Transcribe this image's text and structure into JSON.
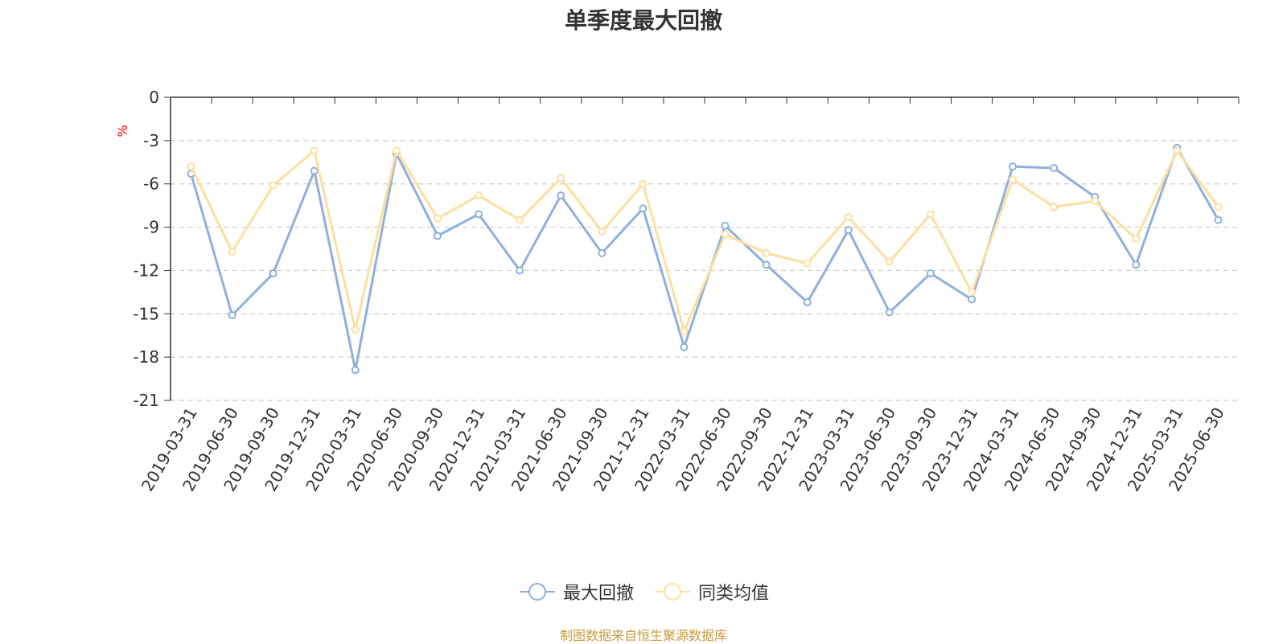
{
  "chart_data": {
    "type": "line",
    "title": "单季度最大回撤",
    "ylabel": "%",
    "xlabel": "",
    "ylim": [
      -21,
      0
    ],
    "yticks": [
      0,
      -3,
      -6,
      -9,
      -12,
      -15,
      -18,
      -21
    ],
    "categories": [
      "2019-03-31",
      "2019-06-30",
      "2019-09-30",
      "2019-12-31",
      "2020-03-31",
      "2020-06-30",
      "2020-09-30",
      "2020-12-31",
      "2021-03-31",
      "2021-06-30",
      "2021-09-30",
      "2021-12-31",
      "2022-03-31",
      "2022-06-30",
      "2022-09-30",
      "2022-12-31",
      "2023-03-31",
      "2023-06-30",
      "2023-09-30",
      "2023-12-31",
      "2024-03-31",
      "2024-06-30",
      "2024-09-30",
      "2024-12-31",
      "2025-03-31",
      "2025-06-30"
    ],
    "series": [
      {
        "name": "最大回撤",
        "color": "#8fb0dc",
        "values": [
          -5.3,
          -15.1,
          -12.2,
          -5.1,
          -18.9,
          -3.9,
          -9.6,
          -8.1,
          -12.0,
          -6.8,
          -10.8,
          -7.7,
          -17.3,
          -8.9,
          -11.6,
          -14.2,
          -9.2,
          -14.9,
          -12.2,
          -14.0,
          -4.8,
          -4.9,
          -6.9,
          -11.6,
          -3.5,
          -8.5
        ]
      },
      {
        "name": "同类均值",
        "color": "#fddf9f",
        "values": [
          -4.8,
          -10.7,
          -6.1,
          -3.7,
          -16.1,
          -3.7,
          -8.4,
          -6.8,
          -8.5,
          -5.6,
          -9.3,
          -6.0,
          -16.2,
          -9.5,
          -10.8,
          -11.5,
          -8.3,
          -11.4,
          -8.1,
          -13.5,
          -5.7,
          -7.6,
          -7.2,
          -9.8,
          -3.7,
          -7.6
        ]
      }
    ]
  },
  "legend": {
    "items": [
      "最大回撤",
      "同类均值"
    ]
  },
  "source": {
    "text": "制图数据来自恒生聚源数据库",
    "color": "#c89b3c"
  },
  "colors": {
    "axis": "#333333",
    "grid": "#cccccc",
    "ylabel_unit": "#ff0000"
  }
}
